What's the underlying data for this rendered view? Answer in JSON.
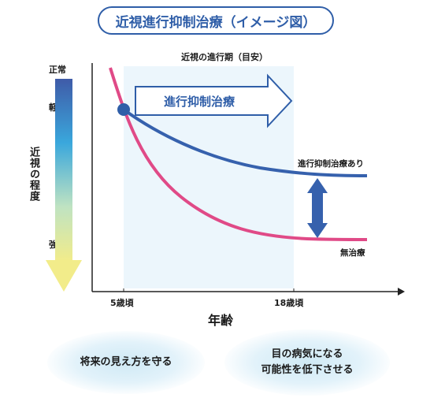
{
  "title": "近視進行抑制治療（イメージ図）",
  "chart_caption": "近視の進行期（目安）",
  "y_axis": {
    "title": "近視の程度",
    "level_labels": [
      "正常",
      "軽度",
      "強度"
    ]
  },
  "x_axis": {
    "title": "年齢",
    "ticks": [
      "5歳頃",
      "18歳頃"
    ]
  },
  "arrow_label": "進行抑制治療",
  "curves": {
    "treated_label": "進行抑制治療あり",
    "untreated_label": "無治療"
  },
  "bottom_notes": {
    "left": "将来の見え方を守る",
    "right_line1": "目の病気になる",
    "right_line2": "可能性を低下させる"
  },
  "colors": {
    "accent_blue": "#2f5ea8",
    "curve_blue": "#3661ad",
    "curve_pink": "#e04a87",
    "shade": "#ecf6fc"
  }
}
